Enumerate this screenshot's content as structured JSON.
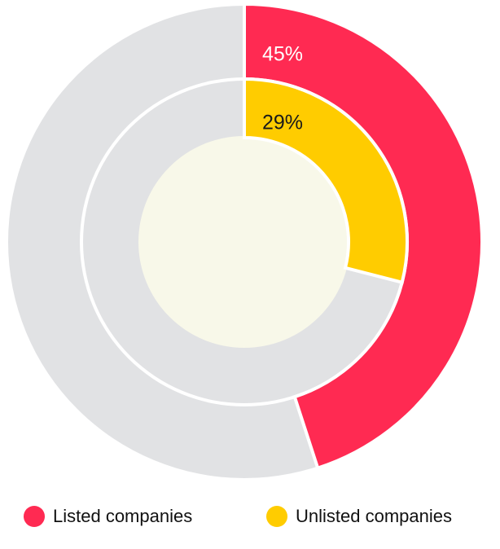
{
  "chart_data": {
    "type": "donut",
    "series": [
      {
        "name": "Listed companies",
        "color": "#ff2a52",
        "values": [
          45
        ],
        "value_labels": [
          "45%"
        ]
      },
      {
        "name": "Unlisted companies",
        "color": "#ffcc00",
        "values": [
          29
        ],
        "value_labels": [
          "29%"
        ]
      }
    ]
  }
}
